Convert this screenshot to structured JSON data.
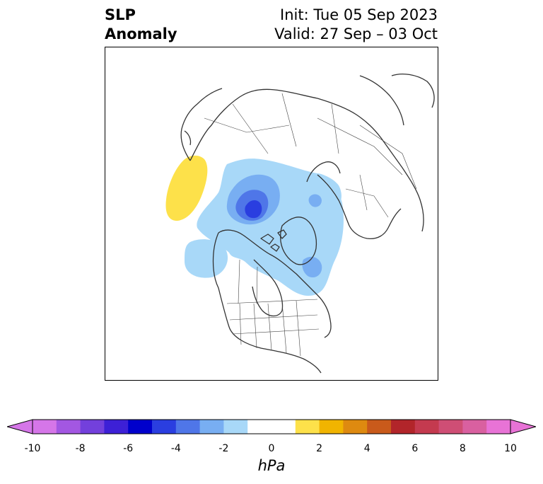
{
  "title": {
    "variable_line1": "SLP",
    "variable_line2": "Anomaly",
    "init": "Init: Tue 05 Sep 2023",
    "valid": "Valid: 27 Sep – 03 Oct"
  },
  "map": {
    "projection": "polar stereographic (North Pole)",
    "features": [
      {
        "name": "positive-anomaly-gulf-of-alaska",
        "approx_value_hpa": 1.5,
        "color": "#fde14a"
      },
      {
        "name": "negative-anomaly-arctic-ocean",
        "approx_value_hpa": -3.5,
        "color": "#2a3ee0"
      },
      {
        "name": "negative-anomaly-scandinavia",
        "approx_value_hpa": -1.5,
        "color": "#a8d8f8"
      },
      {
        "name": "negative-anomaly-bering-sea",
        "approx_value_hpa": -1.5,
        "color": "#a8d8f8"
      }
    ]
  },
  "colorbar": {
    "units": "hPa",
    "extend": "both",
    "min": -10,
    "max": 10,
    "step": 1,
    "tick_labels": [
      "-10",
      "-8",
      "-6",
      "-4",
      "-2",
      "0",
      "2",
      "4",
      "6",
      "8",
      "10"
    ],
    "colors": [
      "#d576e8",
      "#a357e2",
      "#7340dc",
      "#3d20d6",
      "#0000cc",
      "#2a3ee0",
      "#4f76e8",
      "#78aef2",
      "#a8d8f8",
      "#ffffff",
      "#ffffff",
      "#fde14a",
      "#f1b400",
      "#de8a10",
      "#c95a1b",
      "#b2252a",
      "#c43a4f",
      "#cf4e75",
      "#d960a0",
      "#e873d6"
    ],
    "under_color": "#d576e8",
    "over_color": "#e873d6"
  }
}
